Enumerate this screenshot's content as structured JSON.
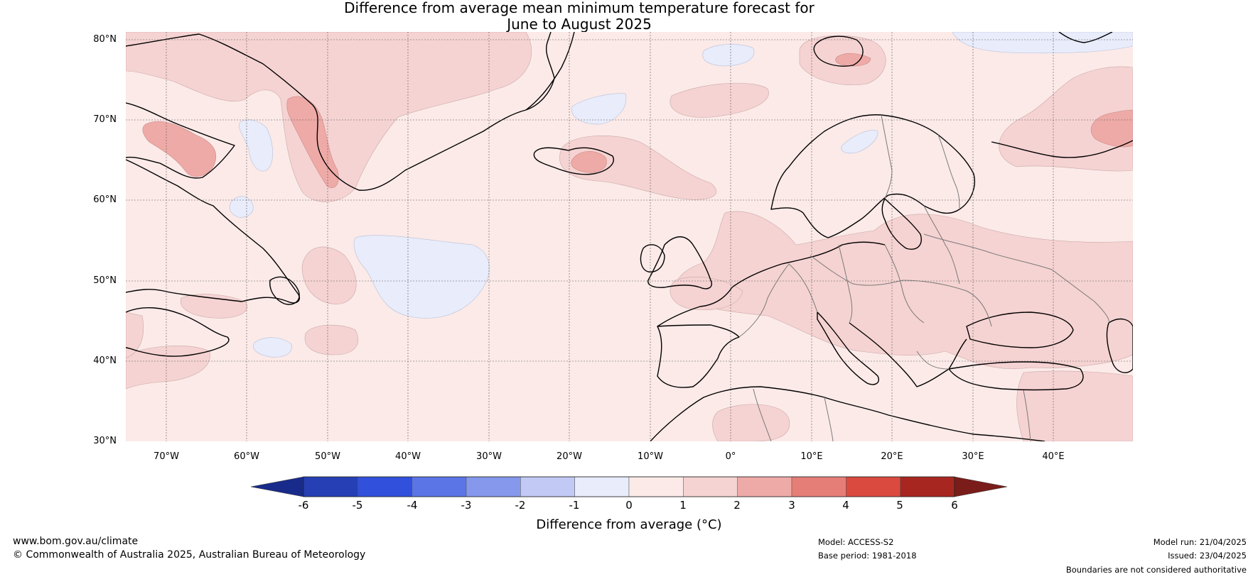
{
  "title_line1": "Difference from average mean minimum temperature forecast for",
  "title_line2": "June to August 2025",
  "lat_labels": [
    "80°N",
    "70°N",
    "60°N",
    "50°N",
    "40°N",
    "30°N"
  ],
  "lon_labels": [
    "70°W",
    "60°W",
    "50°W",
    "40°W",
    "30°W",
    "20°W",
    "10°W",
    "0°",
    "10°E",
    "20°E",
    "30°E",
    "40°E"
  ],
  "colorbar": {
    "ticks": [
      "-6",
      "-5",
      "-4",
      "-3",
      "-2",
      "-1",
      "0",
      "1",
      "2",
      "3",
      "4",
      "5",
      "6"
    ],
    "colors": [
      "#263fb5",
      "#3150dc",
      "#5b75e6",
      "#8598ec",
      "#c1c9f4",
      "#e8ecfb",
      "#fbeae8",
      "#f5d3d2",
      "#eeaaa7",
      "#e57e77",
      "#da4a3f",
      "#a82620"
    ],
    "below_color": "#192b8a",
    "above_color": "#7a1d1a",
    "label": "Difference from average (°C)"
  },
  "footer": {
    "site": "www.bom.gov.au/climate",
    "copyright": "© Commonwealth of Australia 2025, Australian Bureau of Meteorology",
    "model": "Model: ACCESS-S2",
    "base_period": "Base period: 1981-2018",
    "model_run": "Model run: 21/04/2025",
    "issued": "Issued: 23/04/2025",
    "disclaimer": "Boundaries are not considered authoritative"
  }
}
